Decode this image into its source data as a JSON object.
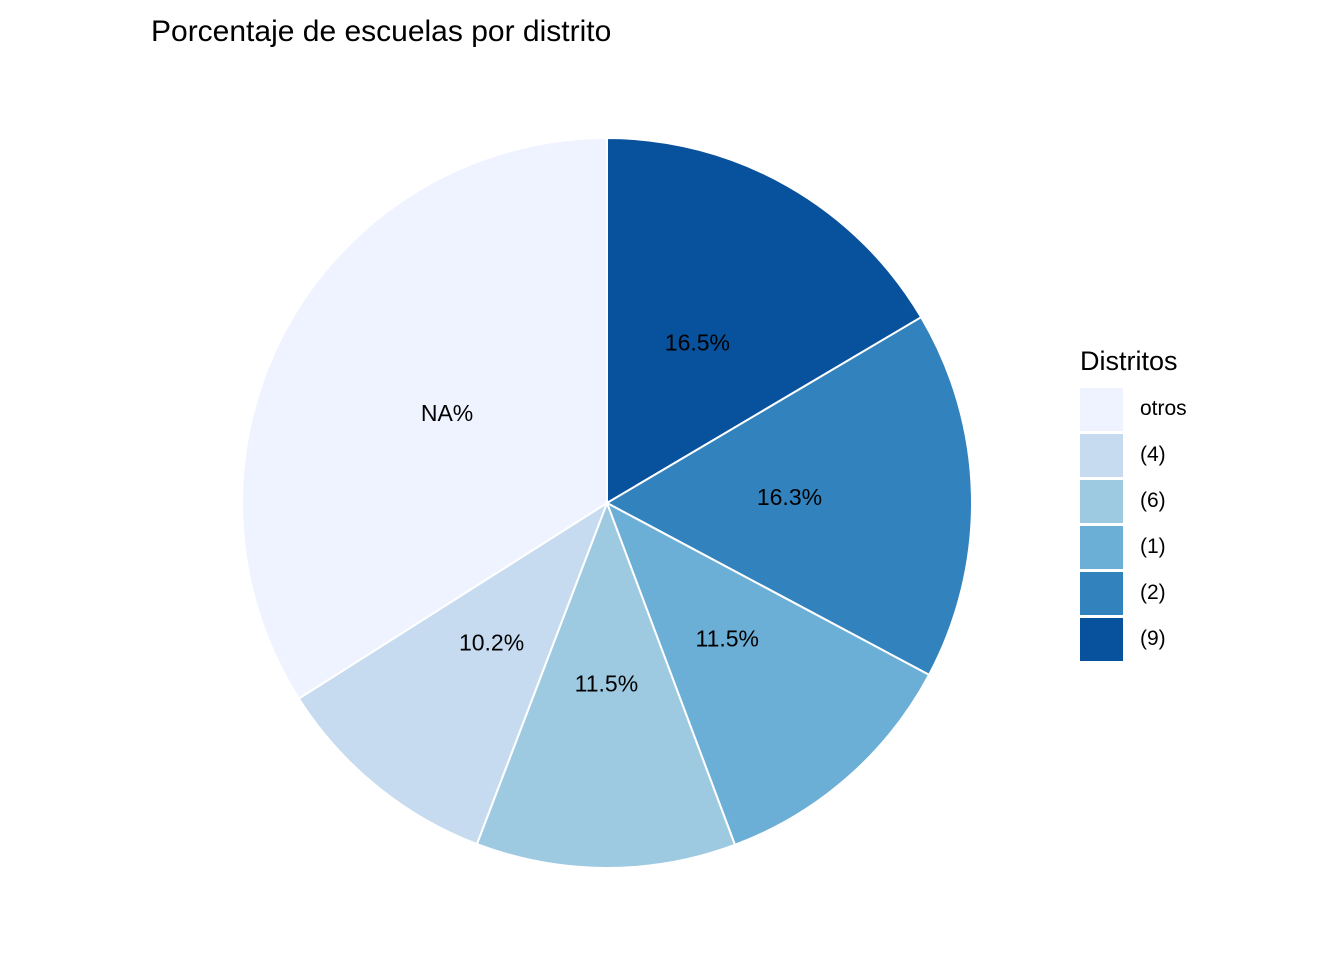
{
  "chart_data": {
    "type": "pie",
    "title": "Porcentaje de escuelas por distrito",
    "slices": [
      {
        "name": "(9)",
        "value": 16.5,
        "label": "16.5%",
        "color": "#08519C"
      },
      {
        "name": "(2)",
        "value": 16.3,
        "label": "16.3%",
        "color": "#3182BD"
      },
      {
        "name": "(1)",
        "value": 11.5,
        "label": "11.5%",
        "color": "#6BAED6"
      },
      {
        "name": "(6)",
        "value": 11.5,
        "label": "11.5%",
        "color": "#9ECAE1"
      },
      {
        "name": "(4)",
        "value": 10.2,
        "label": "10.2%",
        "color": "#C6DBEF"
      },
      {
        "name": "otros",
        "value": 34.0,
        "label": "NA%",
        "color": "#EFF3FF"
      }
    ],
    "legend": {
      "title": "Distritos",
      "placement": "right",
      "items": [
        "otros",
        "(4)",
        "(6)",
        "(1)",
        "(2)",
        "(9)"
      ]
    }
  }
}
